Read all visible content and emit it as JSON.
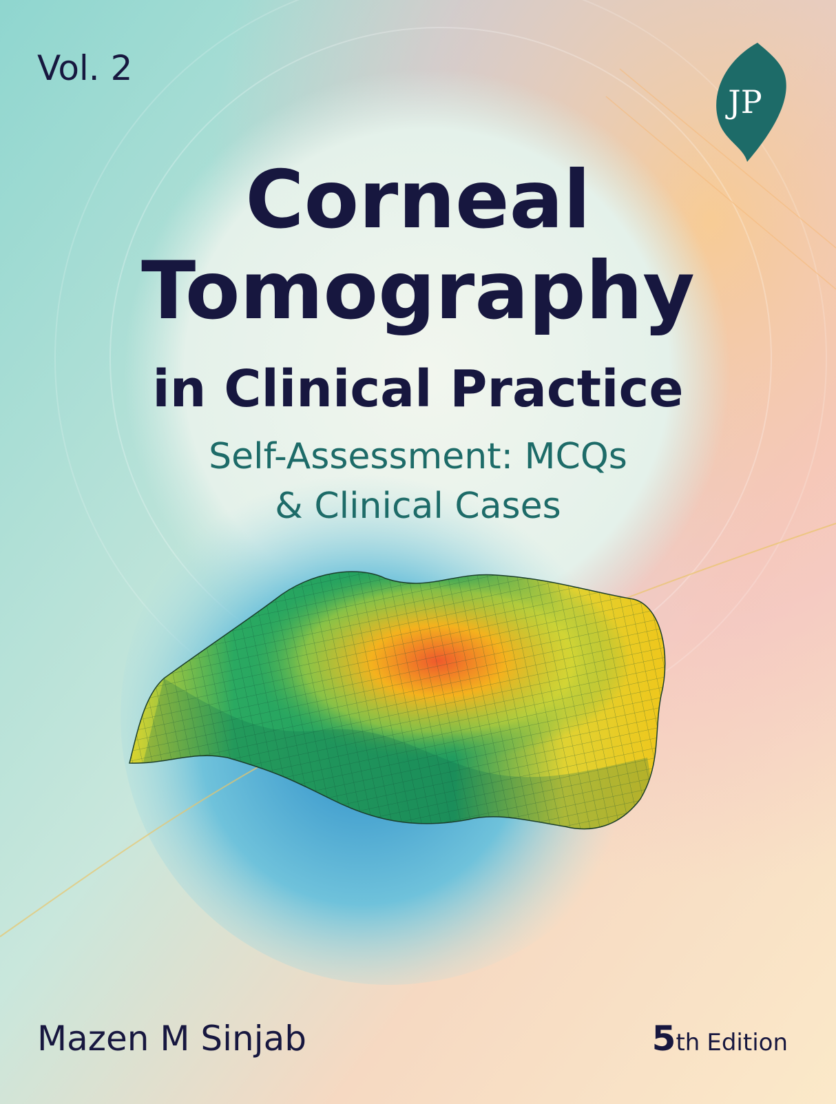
{
  "volume": "Vol. 2",
  "publisher_logo": "JP",
  "title": {
    "lines": [
      "Corneal",
      "Tomography",
      "in Clinical Practice"
    ]
  },
  "subtitle": {
    "lines": [
      "Self-Assessment: MCQs",
      "& Clinical Cases"
    ]
  },
  "author": "Mazen M Sinjab",
  "edition": {
    "number": "5",
    "suffix": "th",
    "word": "Edition"
  }
}
